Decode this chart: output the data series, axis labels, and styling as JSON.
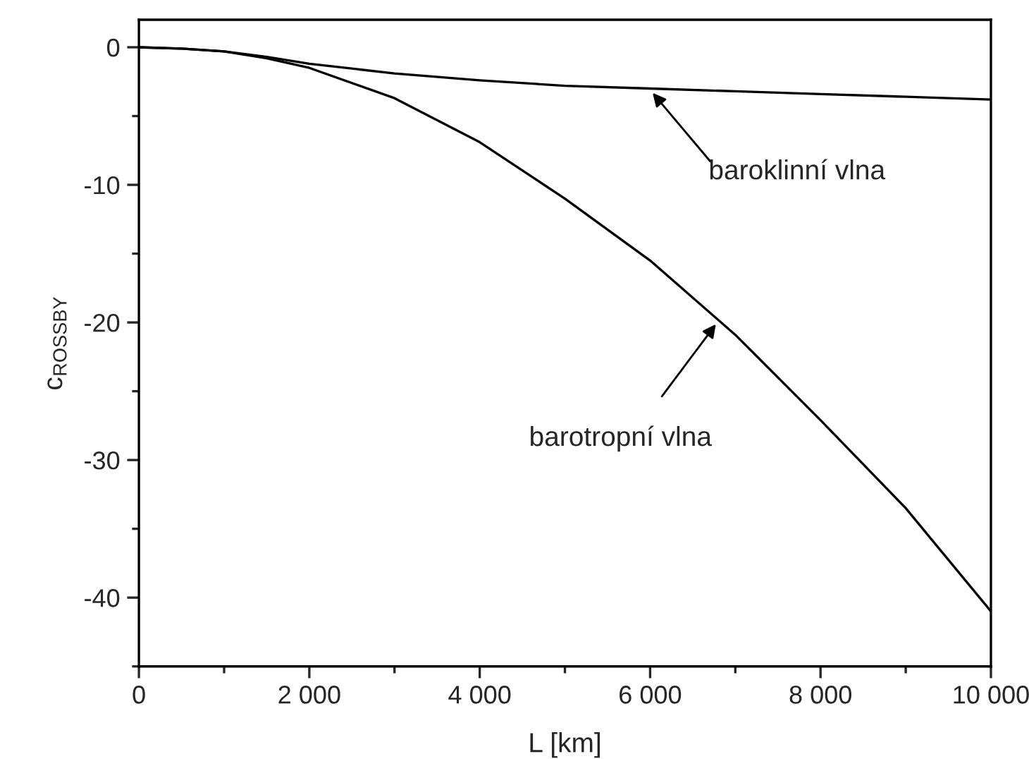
{
  "chart_data": {
    "type": "line",
    "xlabel": "L [km]",
    "ylabel": "c$_{ROSSBY}$",
    "x": [
      0,
      500,
      1000,
      1500,
      2000,
      3000,
      4000,
      5000,
      6000,
      7000,
      8000,
      9000,
      10000
    ],
    "series": [
      {
        "color": "#000000",
        "values": [
          0,
          -0.1,
          -0.3,
          -0.7,
          -1.2,
          -1.9,
          -2.4,
          -2.8,
          -3.0,
          -3.2,
          -3.4,
          -3.6,
          -3.8
        ]
      },
      {
        "color": "#000000",
        "values": [
          0,
          -0.1,
          -0.3,
          -0.8,
          -1.5,
          -3.7,
          -6.9,
          -11,
          -15.5,
          -20.9,
          -27.1,
          -33.5,
          -41
        ]
      }
    ],
    "xlim": [
      0,
      10000
    ],
    "ylim": [
      -45,
      2
    ],
    "xticks": [
      0,
      {
        "value": 1000,
        "label": null
      },
      {
        "value": 2000,
        "label": "2 000"
      },
      {
        "value": 3000,
        "label": null
      },
      {
        "value": 4000,
        "label": "4 000"
      },
      {
        "value": 5000,
        "label": null
      },
      {
        "value": 6000,
        "label": "6 000"
      },
      {
        "value": 7000,
        "label": null
      },
      {
        "value": 8000,
        "label": "8 000"
      },
      {
        "value": 9000,
        "label": null
      },
      {
        "value": 10000,
        "label": "10 000"
      }
    ],
    "yticks": [
      {
        "value": -45,
        "label": null
      },
      -40,
      {
        "value": -35,
        "label": null
      },
      -30,
      {
        "value": -25,
        "label": null
      },
      -20,
      {
        "value": -15,
        "label": null
      },
      -10,
      {
        "value": -5,
        "label": null
      },
      0
    ],
    "annotations": [
      {
        "text": "baroklinní vlna",
        "x": 6000,
        "y": -3.1
      },
      {
        "text": "barotropní vlna",
        "x": 6800,
        "y": -19.9
      }
    ],
    "grid": false,
    "legend": false,
    "marker": "none",
    "line_style": "solid"
  }
}
